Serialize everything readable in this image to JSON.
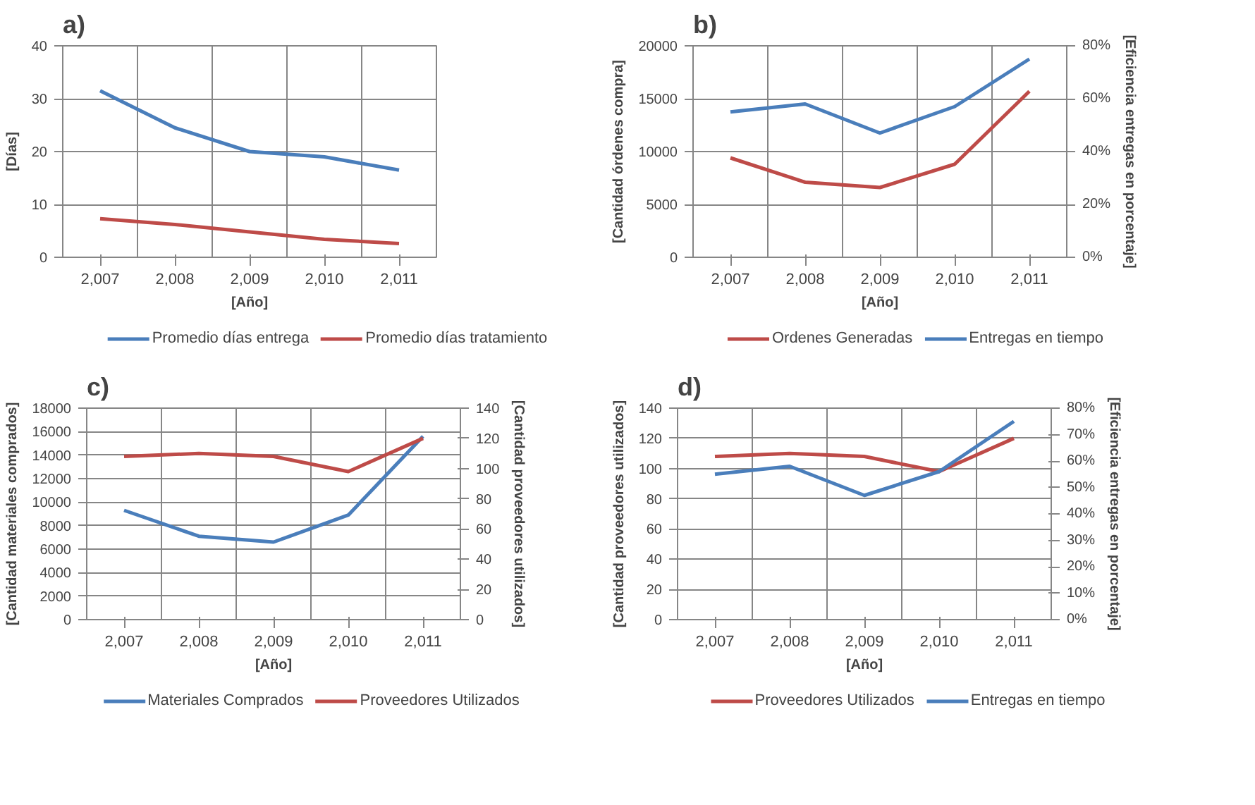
{
  "chart_data": [
    {
      "type": "line",
      "title": "a)",
      "categories": [
        "2,007",
        "2,008",
        "2,009",
        "2,010",
        "2,011"
      ],
      "xlabel": "[Año]",
      "ylabel": "[Días]",
      "ylim": [
        0,
        40
      ],
      "yticks": [
        0,
        10,
        20,
        30,
        40
      ],
      "grid": true,
      "legend": "bottom",
      "series": [
        {
          "name": "Promedio días entrega",
          "color": "#4a7ebb",
          "values": [
            31.5,
            24.5,
            20,
            19,
            16.5
          ]
        },
        {
          "name": "Promedio días tratamiento",
          "color": "#be4b48",
          "values": [
            7.3,
            6.2,
            4.8,
            3.4,
            2.6
          ]
        }
      ]
    },
    {
      "type": "line",
      "title": "b)",
      "categories": [
        "2,007",
        "2,008",
        "2,009",
        "2,010",
        "2,011"
      ],
      "xlabel": "[Año]",
      "ylabel": "[Cantidad órdenes compra]",
      "y2label": "[Eficiencia entregas en porcentaje]",
      "ylim": [
        0,
        20000
      ],
      "yticks": [
        0,
        5000,
        10000,
        15000,
        20000
      ],
      "y2lim": [
        0,
        80
      ],
      "y2ticks": [
        {
          "value": 0,
          "label": "0%"
        },
        {
          "value": 20,
          "label": "20%"
        },
        {
          "value": 40,
          "label": "40%"
        },
        {
          "value": 60,
          "label": "60%"
        },
        {
          "value": 80,
          "label": "80%"
        }
      ],
      "grid": true,
      "legend": "bottom",
      "series": [
        {
          "name": "Ordenes Generadas",
          "color": "#be4b48",
          "values": [
            9400,
            7100,
            6600,
            8800,
            15700
          ]
        },
        {
          "name": "Entregas en tiempo",
          "color": "#4a7ebb",
          "axis": "y2",
          "values": [
            55,
            58,
            47,
            57,
            75
          ]
        }
      ]
    },
    {
      "type": "line",
      "title": "c)",
      "categories": [
        "2,007",
        "2,008",
        "2,009",
        "2,010",
        "2,011"
      ],
      "xlabel": "[Año]",
      "ylabel": "[Cantidad materiales comprados]",
      "y2label": "[Cantidad proveedores utilizados]",
      "ylim": [
        0,
        18000
      ],
      "yticks": [
        0,
        2000,
        4000,
        6000,
        8000,
        10000,
        12000,
        14000,
        16000,
        18000
      ],
      "y2lim": [
        0,
        140
      ],
      "y2ticks": [
        0,
        20,
        40,
        60,
        80,
        100,
        120,
        140
      ],
      "grid": true,
      "legend": "bottom",
      "series": [
        {
          "name": "Materiales Comprados",
          "color": "#4a7ebb",
          "values": [
            9300,
            7100,
            6600,
            8900,
            15600
          ]
        },
        {
          "name": "Proveedores Utilizados",
          "color": "#be4b48",
          "axis": "y2",
          "values": [
            108,
            110,
            108,
            98,
            120
          ]
        }
      ]
    },
    {
      "type": "line",
      "title": "d)",
      "categories": [
        "2,007",
        "2,008",
        "2,009",
        "2,010",
        "2,011"
      ],
      "xlabel": "[Año]",
      "ylabel": "[Cantidad proveedores utilizados]",
      "y2label": "[Eficiencia entregas en porcentaje]",
      "ylim": [
        0,
        140
      ],
      "yticks": [
        0,
        20,
        40,
        60,
        80,
        100,
        120,
        140
      ],
      "y2lim": [
        0,
        80
      ],
      "y2ticks": [
        {
          "value": 0,
          "label": "0%"
        },
        {
          "value": 10,
          "label": "10%"
        },
        {
          "value": 20,
          "label": "20%"
        },
        {
          "value": 30,
          "label": "30%"
        },
        {
          "value": 40,
          "label": "40%"
        },
        {
          "value": 50,
          "label": "50%"
        },
        {
          "value": 60,
          "label": "60%"
        },
        {
          "value": 70,
          "label": "70%"
        },
        {
          "value": 80,
          "label": "80%"
        }
      ],
      "grid": true,
      "legend": "bottom",
      "series": [
        {
          "name": "Proveedores Utilizados",
          "color": "#be4b48",
          "values": [
            108,
            110,
            108,
            98,
            120
          ]
        },
        {
          "name": "Entregas en tiempo",
          "color": "#4a7ebb",
          "axis": "y2",
          "values": [
            55,
            58,
            47,
            56,
            75
          ]
        }
      ]
    }
  ]
}
